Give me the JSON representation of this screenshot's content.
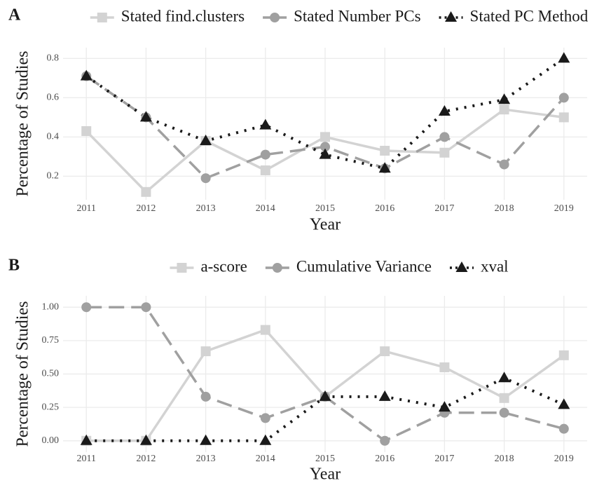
{
  "chart_data": [
    {
      "type": "line",
      "tag": "A",
      "xlabel": "Year",
      "ylabel": "Percentage of Studies",
      "x": [
        2011,
        2012,
        2013,
        2014,
        2015,
        2016,
        2017,
        2018,
        2019
      ],
      "xlim": [
        2010.61,
        2019.39
      ],
      "xticks": [
        2011,
        2012,
        2013,
        2014,
        2015,
        2016,
        2017,
        2018,
        2019
      ],
      "ylim": [
        0.08,
        0.855
      ],
      "yticks": [
        0.2,
        0.4,
        0.6,
        0.8
      ],
      "grid": true,
      "legend": "top",
      "series": [
        {
          "name": "Stated find.clusters",
          "color": "#d3d3d3",
          "linetype": "solid",
          "marker": "square",
          "values": [
            0.43,
            0.12,
            0.38,
            0.23,
            0.4,
            0.33,
            0.32,
            0.54,
            0.5
          ]
        },
        {
          "name": "Stated Number PCs",
          "color": "#a0a0a0",
          "linetype": "longdash",
          "marker": "circle",
          "values": [
            0.71,
            0.5,
            0.19,
            0.31,
            0.35,
            0.24,
            0.4,
            0.26,
            0.6
          ]
        },
        {
          "name": "Stated PC Method",
          "color": "#1a1a1a",
          "linetype": "dotted",
          "marker": "triangle",
          "values": [
            0.71,
            0.5,
            0.38,
            0.46,
            0.31,
            0.24,
            0.53,
            0.59,
            0.8
          ]
        }
      ]
    },
    {
      "type": "line",
      "tag": "B",
      "xlabel": "Year",
      "ylabel": "Percentage of Studies",
      "x": [
        2011,
        2012,
        2013,
        2014,
        2015,
        2016,
        2017,
        2018,
        2019
      ],
      "xlim": [
        2010.61,
        2019.39
      ],
      "xticks": [
        2011,
        2012,
        2013,
        2014,
        2015,
        2016,
        2017,
        2018,
        2019
      ],
      "ylim": [
        -0.085,
        1.085
      ],
      "yticks": [
        {
          "value": 0,
          "label": "0.00"
        },
        {
          "value": 0.25,
          "label": "0.25"
        },
        {
          "value": 0.5,
          "label": "0.50"
        },
        {
          "value": 0.75,
          "label": "0.75"
        },
        {
          "value": 1,
          "label": "1.00"
        }
      ],
      "grid": true,
      "legend": "top",
      "series": [
        {
          "name": "a-score",
          "color": "#d3d3d3",
          "linetype": "solid",
          "marker": "square",
          "values": [
            0,
            0,
            0.67,
            0.83,
            0.33,
            0.67,
            0.55,
            0.32,
            0.64
          ]
        },
        {
          "name": "Cumulative Variance",
          "color": "#a0a0a0",
          "linetype": "longdash",
          "marker": "circle",
          "values": [
            1,
            1,
            0.33,
            0.17,
            0.33,
            0,
            0.21,
            0.21,
            0.09
          ]
        },
        {
          "name": "xval",
          "color": "#1a1a1a",
          "linetype": "dotted",
          "marker": "triangle",
          "values": [
            0,
            0,
            0,
            0,
            0.33,
            0.33,
            0.25,
            0.47,
            0.27
          ]
        }
      ]
    }
  ]
}
